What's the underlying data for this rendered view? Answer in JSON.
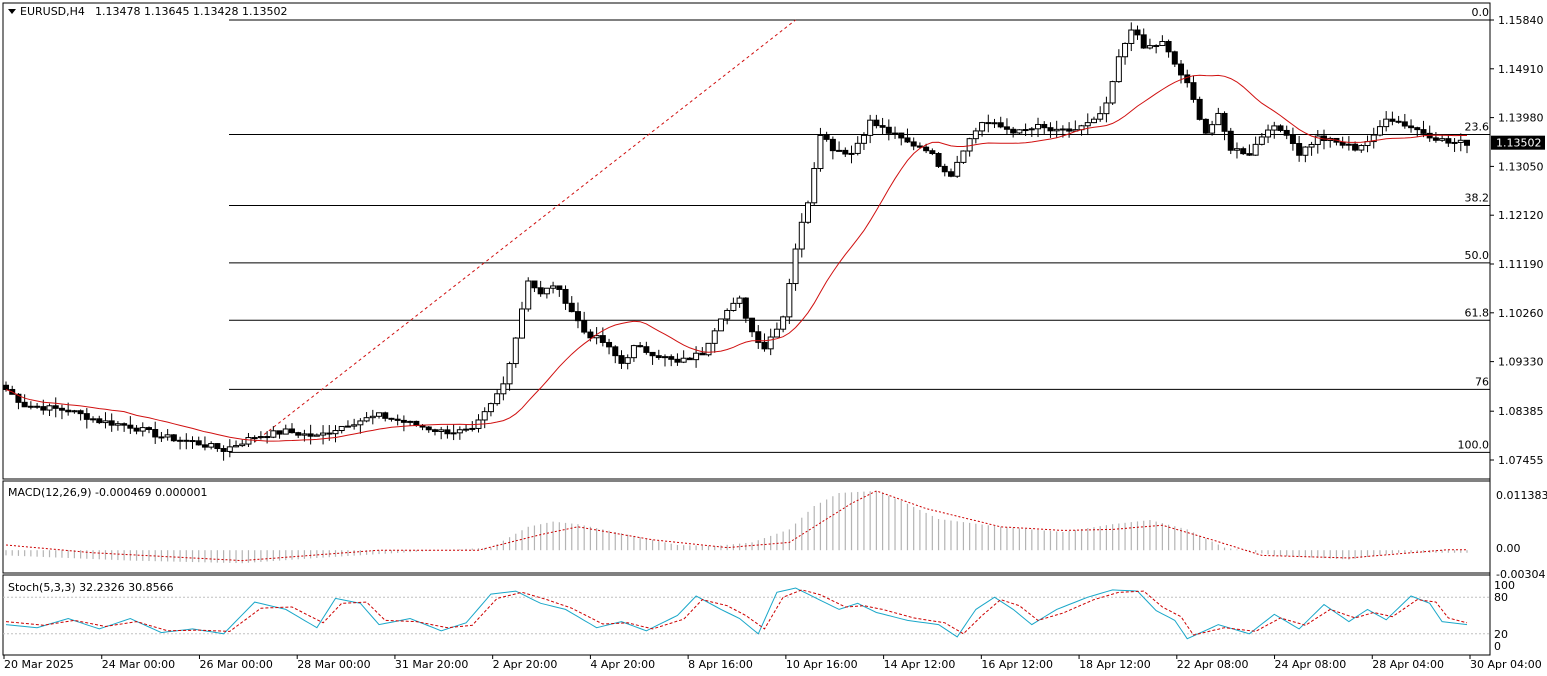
{
  "header": {
    "symbol": "EURUSD,H4",
    "ohlc": "1.13478 1.13645 1.13428 1.13502"
  },
  "price_axis": {
    "ticks": [
      "1.15840",
      "1.14910",
      "1.13980",
      "1.13050",
      "1.12120",
      "1.11190",
      "1.10260",
      "1.09330",
      "1.08385",
      "1.07455"
    ],
    "current": "1.13502"
  },
  "fib_levels": [
    {
      "label": "0.0",
      "price": 1.1584
    },
    {
      "label": "23.6",
      "price": 1.13657
    },
    {
      "label": "38.2",
      "price": 1.12305
    },
    {
      "label": "50.0",
      "price": 1.11212
    },
    {
      "label": "61.8",
      "price": 1.10118
    },
    {
      "label": "76",
      "price": 1.088
    },
    {
      "label": "100.0",
      "price": 1.076
    }
  ],
  "macd": {
    "label": "MACD(12,26,9) -0.000469 0.000001",
    "ticks": [
      "0.011383",
      "0.00",
      "-0.00304"
    ]
  },
  "stoch": {
    "label": "Stoch(5,3,3) 32.2326 30.8566",
    "ticks": [
      "100",
      "80",
      "20",
      "0"
    ]
  },
  "time_axis": [
    "20 Mar 2025",
    "24 Mar 00:00",
    "26 Mar 00:00",
    "28 Mar 00:00",
    "31 Mar 20:00",
    "2 Apr 20:00",
    "4 Apr 20:00",
    "8 Apr 16:00",
    "10 Apr 16:00",
    "14 Apr 12:00",
    "16 Apr 12:00",
    "18 Apr 12:00",
    "22 Apr 08:00",
    "24 Apr 08:00",
    "28 Apr 04:00",
    "30 Apr 04:00"
  ],
  "colors": {
    "ma": "#d01010",
    "signal": "#cc0000",
    "stoch_main": "#1aa7c9",
    "stoch_signal": "#cc0000",
    "hist": "#b4b4b4",
    "trendline": "#d01010"
  },
  "chart_data": {
    "type": "candlestick",
    "symbol": "EURUSD",
    "timeframe": "H4",
    "close_anchors": [
      [
        0,
        1.088
      ],
      [
        3,
        1.085
      ],
      [
        10,
        1.084
      ],
      [
        15,
        1.082
      ],
      [
        20,
        1.081
      ],
      [
        25,
        1.079
      ],
      [
        30,
        1.078
      ],
      [
        35,
        1.0765
      ],
      [
        40,
        1.079
      ],
      [
        45,
        1.08
      ],
      [
        50,
        1.079
      ],
      [
        55,
        1.0815
      ],
      [
        60,
        1.083
      ],
      [
        65,
        1.0815
      ],
      [
        70,
        1.08
      ],
      [
        75,
        1.08
      ],
      [
        78,
        1.085
      ],
      [
        80,
        1.089
      ],
      [
        82,
        1.098
      ],
      [
        84,
        1.109
      ],
      [
        86,
        1.106
      ],
      [
        88,
        1.108
      ],
      [
        90,
        1.105
      ],
      [
        93,
        1.099
      ],
      [
        96,
        1.097
      ],
      [
        99,
        1.093
      ],
      [
        101,
        1.096
      ],
      [
        104,
        1.095
      ],
      [
        108,
        1.093
      ],
      [
        112,
        1.095
      ],
      [
        115,
        1.102
      ],
      [
        118,
        1.105
      ],
      [
        120,
        1.099
      ],
      [
        122,
        1.096
      ],
      [
        125,
        1.102
      ],
      [
        127,
        1.115
      ],
      [
        129,
        1.124
      ],
      [
        131,
        1.137
      ],
      [
        133,
        1.134
      ],
      [
        136,
        1.133
      ],
      [
        139,
        1.139
      ],
      [
        142,
        1.137
      ],
      [
        145,
        1.135
      ],
      [
        148,
        1.134
      ],
      [
        150,
        1.131
      ],
      [
        152,
        1.129
      ],
      [
        154,
        1.134
      ],
      [
        157,
        1.139
      ],
      [
        160,
        1.138
      ],
      [
        163,
        1.137
      ],
      [
        166,
        1.138
      ],
      [
        169,
        1.137
      ],
      [
        172,
        1.1375
      ],
      [
        175,
        1.139
      ],
      [
        177,
        1.142
      ],
      [
        179,
        1.151
      ],
      [
        181,
        1.157
      ],
      [
        183,
        1.153
      ],
      [
        186,
        1.154
      ],
      [
        188,
        1.15
      ],
      [
        190,
        1.146
      ],
      [
        193,
        1.137
      ],
      [
        195,
        1.14
      ],
      [
        197,
        1.134
      ],
      [
        200,
        1.133
      ],
      [
        203,
        1.138
      ],
      [
        206,
        1.137
      ],
      [
        208,
        1.133
      ],
      [
        211,
        1.136
      ],
      [
        214,
        1.135
      ],
      [
        217,
        1.134
      ],
      [
        220,
        1.136
      ],
      [
        222,
        1.14
      ],
      [
        224,
        1.139
      ],
      [
        226,
        1.138
      ],
      [
        228,
        1.137
      ],
      [
        230,
        1.136
      ],
      [
        232,
        1.135
      ]
    ],
    "macd_anchors": [
      [
        0,
        -0.001
      ],
      [
        20,
        -0.002
      ],
      [
        38,
        -0.0025
      ],
      [
        50,
        -0.0015
      ],
      [
        70,
        0.0
      ],
      [
        78,
        0.0005
      ],
      [
        84,
        0.0045
      ],
      [
        88,
        0.0055
      ],
      [
        92,
        0.005
      ],
      [
        100,
        0.003
      ],
      [
        108,
        0.001
      ],
      [
        114,
        0.0008
      ],
      [
        120,
        0.0015
      ],
      [
        126,
        0.004
      ],
      [
        130,
        0.0085
      ],
      [
        134,
        0.011
      ],
      [
        140,
        0.0114
      ],
      [
        144,
        0.0095
      ],
      [
        150,
        0.006
      ],
      [
        160,
        0.0045
      ],
      [
        170,
        0.0035
      ],
      [
        178,
        0.005
      ],
      [
        184,
        0.0058
      ],
      [
        190,
        0.004
      ],
      [
        196,
        0.0005
      ],
      [
        204,
        -0.001
      ],
      [
        216,
        -0.0018
      ],
      [
        224,
        -0.0005
      ],
      [
        232,
        -0.0005
      ]
    ],
    "signal_anchors": [
      [
        0,
        0.001
      ],
      [
        14,
        -0.0005
      ],
      [
        38,
        -0.002
      ],
      [
        60,
        0.0
      ],
      [
        76,
        0.0
      ],
      [
        86,
        0.003
      ],
      [
        92,
        0.0045
      ],
      [
        104,
        0.002
      ],
      [
        116,
        0.0005
      ],
      [
        126,
        0.0015
      ],
      [
        136,
        0.009
      ],
      [
        140,
        0.0114
      ],
      [
        148,
        0.008
      ],
      [
        160,
        0.0045
      ],
      [
        170,
        0.0038
      ],
      [
        178,
        0.004
      ],
      [
        186,
        0.0048
      ],
      [
        194,
        0.002
      ],
      [
        202,
        -0.001
      ],
      [
        216,
        -0.0015
      ],
      [
        232,
        0.0001
      ]
    ],
    "stoch_anchors": [
      [
        0,
        35
      ],
      [
        5,
        30
      ],
      [
        10,
        45
      ],
      [
        15,
        28
      ],
      [
        20,
        45
      ],
      [
        25,
        22
      ],
      [
        30,
        28
      ],
      [
        35,
        20
      ],
      [
        40,
        72
      ],
      [
        45,
        60
      ],
      [
        50,
        30
      ],
      [
        53,
        78
      ],
      [
        57,
        70
      ],
      [
        60,
        35
      ],
      [
        65,
        45
      ],
      [
        70,
        25
      ],
      [
        74,
        38
      ],
      [
        78,
        85
      ],
      [
        82,
        90
      ],
      [
        86,
        70
      ],
      [
        90,
        60
      ],
      [
        95,
        30
      ],
      [
        99,
        40
      ],
      [
        103,
        25
      ],
      [
        108,
        50
      ],
      [
        111,
        82
      ],
      [
        115,
        60
      ],
      [
        118,
        45
      ],
      [
        121,
        20
      ],
      [
        124,
        88
      ],
      [
        127,
        95
      ],
      [
        130,
        80
      ],
      [
        134,
        60
      ],
      [
        137,
        70
      ],
      [
        140,
        55
      ],
      [
        145,
        42
      ],
      [
        150,
        35
      ],
      [
        153,
        15
      ],
      [
        156,
        60
      ],
      [
        159,
        80
      ],
      [
        162,
        60
      ],
      [
        165,
        35
      ],
      [
        169,
        60
      ],
      [
        174,
        80
      ],
      [
        178,
        92
      ],
      [
        182,
        90
      ],
      [
        185,
        58
      ],
      [
        188,
        42
      ],
      [
        190,
        12
      ],
      [
        195,
        35
      ],
      [
        200,
        20
      ],
      [
        204,
        52
      ],
      [
        208,
        28
      ],
      [
        212,
        68
      ],
      [
        216,
        40
      ],
      [
        219,
        60
      ],
      [
        222,
        43
      ],
      [
        226,
        82
      ],
      [
        229,
        70
      ],
      [
        231,
        40
      ],
      [
        235,
        35
      ]
    ],
    "stoch_signal_anchors": [
      [
        0,
        40
      ],
      [
        6,
        34
      ],
      [
        11,
        42
      ],
      [
        16,
        32
      ],
      [
        21,
        40
      ],
      [
        26,
        25
      ],
      [
        31,
        26
      ],
      [
        36,
        24
      ],
      [
        41,
        62
      ],
      [
        46,
        64
      ],
      [
        51,
        38
      ],
      [
        54,
        70
      ],
      [
        58,
        72
      ],
      [
        61,
        42
      ],
      [
        66,
        40
      ],
      [
        71,
        30
      ],
      [
        75,
        34
      ],
      [
        79,
        78
      ],
      [
        83,
        88
      ],
      [
        87,
        76
      ],
      [
        91,
        62
      ],
      [
        96,
        36
      ],
      [
        100,
        38
      ],
      [
        104,
        28
      ],
      [
        109,
        44
      ],
      [
        112,
        76
      ],
      [
        116,
        66
      ],
      [
        119,
        50
      ],
      [
        122,
        28
      ],
      [
        125,
        80
      ],
      [
        128,
        92
      ],
      [
        131,
        84
      ],
      [
        135,
        64
      ],
      [
        138,
        66
      ],
      [
        141,
        60
      ],
      [
        146,
        46
      ],
      [
        151,
        38
      ],
      [
        154,
        20
      ],
      [
        157,
        50
      ],
      [
        160,
        76
      ],
      [
        163,
        66
      ],
      [
        166,
        42
      ],
      [
        170,
        54
      ],
      [
        175,
        76
      ],
      [
        179,
        88
      ],
      [
        183,
        90
      ],
      [
        186,
        64
      ],
      [
        189,
        48
      ],
      [
        191,
        18
      ],
      [
        196,
        30
      ],
      [
        201,
        24
      ],
      [
        205,
        46
      ],
      [
        209,
        34
      ],
      [
        213,
        60
      ],
      [
        217,
        46
      ],
      [
        220,
        55
      ],
      [
        223,
        48
      ],
      [
        227,
        76
      ],
      [
        230,
        72
      ],
      [
        232,
        46
      ],
      [
        235,
        38
      ]
    ],
    "ma_period": 20,
    "n_bars": 236
  }
}
